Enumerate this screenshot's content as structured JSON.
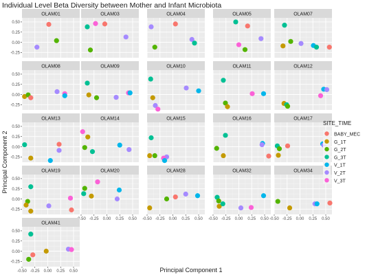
{
  "chart_data": {
    "type": "scatter",
    "title": "Individual Level Beta Diversity between Mother and Infant Microbiota",
    "xlabel": "Principal Component 1",
    "ylabel": "Principal Component 2",
    "xlim": [
      -0.5,
      0.62
    ],
    "ylim": [
      -0.38,
      0.6
    ],
    "x_ticks": [
      -0.5,
      -0.25,
      0.0,
      0.25,
      0.5
    ],
    "x_tick_labels": [
      "-0.50",
      "-0.25",
      "0.00",
      "0.25",
      "0.50"
    ],
    "y_ticks": [
      -0.25,
      0.0,
      0.25,
      0.5
    ],
    "y_tick_labels": [
      "-0.25",
      "0.00",
      "0.25",
      "0.50"
    ],
    "grid": true,
    "background": "#ebebeb",
    "strip_background": "#d9d9d9",
    "legend": {
      "title": "SITE_TIME",
      "position": "right",
      "entries": [
        {
          "label": "BABY_MEC",
          "color": "#f8766d"
        },
        {
          "label": "G_1T",
          "color": "#c49a00"
        },
        {
          "label": "G_2T",
          "color": "#53b400"
        },
        {
          "label": "G_3T",
          "color": "#00c094"
        },
        {
          "label": "V_1T",
          "color": "#00b6eb"
        },
        {
          "label": "V_2T",
          "color": "#a58aff"
        },
        {
          "label": "V_3T",
          "color": "#fb61d7"
        }
      ]
    },
    "panels": [
      {
        "label": "OLAM01",
        "points": [
          {
            "x": 0.02,
            "y": 0.44,
            "g": "BABY_MEC"
          },
          {
            "x": 0.17,
            "y": 0.04,
            "g": "G_2T"
          },
          {
            "x": -0.21,
            "y": -0.12,
            "g": "V_2T"
          }
        ]
      },
      {
        "label": "OLAM03",
        "points": [
          {
            "x": -0.04,
            "y": 0.45,
            "g": "BABY_MEC"
          },
          {
            "x": -0.22,
            "y": 0.46,
            "g": "V_3T"
          },
          {
            "x": -0.38,
            "y": 0.38,
            "g": "G_3T"
          },
          {
            "x": -0.32,
            "y": -0.19,
            "g": "G_2T"
          },
          {
            "x": 0.37,
            "y": 0.13,
            "g": "V_2T"
          }
        ]
      },
      {
        "label": "OLAM04",
        "points": [
          {
            "x": -0.42,
            "y": 0.38,
            "g": "V_2T"
          },
          {
            "x": 0.05,
            "y": 0.45,
            "g": "BABY_MEC"
          },
          {
            "x": 0.37,
            "y": 0.07,
            "g": "V_2T"
          },
          {
            "x": 0.42,
            "y": -0.02,
            "g": "G_3T"
          },
          {
            "x": -0.35,
            "y": -0.12,
            "g": "G_2T"
          }
        ]
      },
      {
        "label": "OLAM05",
        "points": [
          {
            "x": -0.06,
            "y": 0.5,
            "g": "G_3T"
          },
          {
            "x": 0.17,
            "y": 0.4,
            "g": "BABY_MEC"
          },
          {
            "x": 0.43,
            "y": 0.09,
            "g": "V_2T"
          },
          {
            "x": 0.0,
            "y": -0.06,
            "g": "V_3T"
          },
          {
            "x": 0.12,
            "y": -0.18,
            "g": "G_2T"
          }
        ]
      },
      {
        "label": "OLAM07",
        "points": [
          {
            "x": -0.3,
            "y": 0.42,
            "g": "G_3T"
          },
          {
            "x": -0.18,
            "y": 0.02,
            "g": "G_2T"
          },
          {
            "x": -0.33,
            "y": -0.09,
            "g": "G_1T"
          },
          {
            "x": 0.02,
            "y": -0.03,
            "g": "V_2T"
          },
          {
            "x": 0.26,
            "y": -0.08,
            "g": "V_1T"
          },
          {
            "x": 0.32,
            "y": -0.12,
            "g": "G_3T"
          },
          {
            "x": 0.57,
            "y": -0.12,
            "g": "BABY_MEC"
          }
        ]
      },
      {
        "label": "OLAM08",
        "points": [
          {
            "x": -0.45,
            "y": -0.05,
            "g": "G_1T"
          },
          {
            "x": -0.38,
            "y": -0.01,
            "g": "G_2T"
          },
          {
            "x": -0.33,
            "y": -0.08,
            "g": "BABY_MEC"
          },
          {
            "x": 0.18,
            "y": 0.07,
            "g": "V_2T"
          },
          {
            "x": 0.33,
            "y": 0.02,
            "g": "V_3T"
          },
          {
            "x": 0.33,
            "y": -0.03,
            "g": "V_1T"
          }
        ]
      },
      {
        "label": "OLAM09",
        "points": [
          {
            "x": -0.38,
            "y": 0.28,
            "g": "G_3T"
          },
          {
            "x": -0.35,
            "y": -0.01,
            "g": "G_1T"
          },
          {
            "x": -0.2,
            "y": -0.08,
            "g": "G_2T"
          },
          {
            "x": 0.18,
            "y": -0.07,
            "g": "V_2T"
          },
          {
            "x": 0.42,
            "y": 0.04,
            "g": "V_3T"
          },
          {
            "x": 0.45,
            "y": 0.04,
            "g": "V_1T"
          }
        ]
      },
      {
        "label": "OLAM10",
        "points": [
          {
            "x": -0.43,
            "y": 0.38,
            "g": "G_3T"
          },
          {
            "x": -0.39,
            "y": -0.08,
            "g": "G_1T"
          },
          {
            "x": -0.34,
            "y": -0.27,
            "g": "V_2T"
          },
          {
            "x": -0.29,
            "y": -0.36,
            "g": "V_3T"
          },
          {
            "x": 0.26,
            "y": 0.16,
            "g": "V_2T"
          },
          {
            "x": 0.5,
            "y": 0.09,
            "g": "V_1T"
          }
        ]
      },
      {
        "label": "OLAM11",
        "points": [
          {
            "x": -0.3,
            "y": 0.35,
            "g": "G_3T"
          },
          {
            "x": -0.26,
            "y": -0.21,
            "g": "G_2T"
          },
          {
            "x": -0.22,
            "y": -0.3,
            "g": "G_1T"
          },
          {
            "x": 0.26,
            "y": 0.02,
            "g": "V_3T"
          },
          {
            "x": 0.48,
            "y": 0.02,
            "g": "V_1T"
          }
        ]
      },
      {
        "label": "OLAM12",
        "points": [
          {
            "x": -0.31,
            "y": -0.22,
            "g": "G_1T"
          },
          {
            "x": -0.26,
            "y": -0.25,
            "g": "G_3T"
          },
          {
            "x": -0.24,
            "y": -0.29,
            "g": "G_2T"
          },
          {
            "x": 0.4,
            "y": -0.03,
            "g": "V_3T"
          },
          {
            "x": 0.46,
            "y": 0.13,
            "g": "V_1T"
          },
          {
            "x": 0.52,
            "y": 0.12,
            "g": "V_2T"
          }
        ]
      },
      {
        "label": "OLAM13",
        "points": [
          {
            "x": -0.45,
            "y": 0.05,
            "g": "G_3T"
          },
          {
            "x": -0.33,
            "y": -0.28,
            "g": "G_1T"
          },
          {
            "x": 0.22,
            "y": 0.06,
            "g": "BABY_MEC"
          },
          {
            "x": 0.22,
            "y": -0.09,
            "g": "V_2T"
          },
          {
            "x": 0.05,
            "y": -0.34,
            "g": "V_1T"
          }
        ]
      },
      {
        "label": "OLAM14",
        "points": [
          {
            "x": -0.47,
            "y": 0.37,
            "g": "V_3T"
          },
          {
            "x": -0.37,
            "y": 0.24,
            "g": "G_1T"
          },
          {
            "x": -0.43,
            "y": -0.02,
            "g": "G_2T"
          },
          {
            "x": -0.28,
            "y": -0.12,
            "g": "G_3T"
          },
          {
            "x": 0.25,
            "y": 0.04,
            "g": "V_1T"
          },
          {
            "x": 0.43,
            "y": -0.07,
            "g": "V_2T"
          }
        ]
      },
      {
        "label": "OLAM15",
        "points": [
          {
            "x": -0.42,
            "y": 0.22,
            "g": "G_3T"
          },
          {
            "x": -0.45,
            "y": -0.22,
            "g": "G_1T"
          },
          {
            "x": -0.35,
            "y": -0.22,
            "g": "G_2T"
          },
          {
            "x": -0.12,
            "y": -0.25,
            "g": "V_2T"
          },
          {
            "x": -0.18,
            "y": -0.28,
            "g": "V_3T"
          },
          {
            "x": -0.16,
            "y": -0.34,
            "g": "V_1T"
          }
        ]
      },
      {
        "label": "OLAM16",
        "points": [
          {
            "x": -0.26,
            "y": 0.28,
            "g": "G_3T"
          },
          {
            "x": -0.43,
            "y": -0.04,
            "g": "G_2T"
          },
          {
            "x": -0.3,
            "y": -0.22,
            "g": "G_1T"
          },
          {
            "x": 0.46,
            "y": 0.08,
            "g": "V_1T"
          },
          {
            "x": 0.45,
            "y": 0.05,
            "g": "V_2T"
          },
          {
            "x": 0.58,
            "y": -0.23,
            "g": "BABY_MEC"
          }
        ]
      },
      {
        "label": "OLAM17",
        "points": [
          {
            "x": -0.44,
            "y": 0.02,
            "g": "G_3T"
          },
          {
            "x": -0.4,
            "y": -0.05,
            "g": "G_2T"
          },
          {
            "x": -0.24,
            "y": 0.02,
            "g": "BABY_MEC"
          },
          {
            "x": -0.42,
            "y": -0.21,
            "g": "G_1T"
          },
          {
            "x": 0.44,
            "y": 0.07,
            "g": "V_1T"
          },
          {
            "x": 0.46,
            "y": 0.04,
            "g": "V_2T"
          }
        ]
      },
      {
        "label": "OLAM19",
        "points": [
          {
            "x": -0.33,
            "y": 0.3,
            "g": "G_3T"
          },
          {
            "x": -0.39,
            "y": -0.06,
            "g": "G_2T"
          },
          {
            "x": -0.42,
            "y": -0.15,
            "g": "G_1T"
          },
          {
            "x": -0.33,
            "y": -0.3,
            "g": "G_1T"
          },
          {
            "x": 0.02,
            "y": -0.17,
            "g": "V_2T"
          },
          {
            "x": 0.44,
            "y": 0.02,
            "g": "V_3T"
          },
          {
            "x": 0.46,
            "y": -0.27,
            "g": "BABY_MEC"
          }
        ]
      },
      {
        "label": "OLAM20",
        "points": [
          {
            "x": -0.43,
            "y": 0.26,
            "g": "G_2T"
          },
          {
            "x": -0.18,
            "y": 0.42,
            "g": "V_3T"
          },
          {
            "x": -0.45,
            "y": 0.13,
            "g": "G_3T"
          },
          {
            "x": -0.3,
            "y": 0.07,
            "g": "G_1T"
          },
          {
            "x": 0.24,
            "y": 0.22,
            "g": "V_1T"
          },
          {
            "x": 0.2,
            "y": 0.0,
            "g": "V_2T"
          }
        ]
      },
      {
        "label": "OLAM28",
        "points": [
          {
            "x": -0.45,
            "y": -0.22,
            "g": "G_1T"
          },
          {
            "x": -0.12,
            "y": 0.0,
            "g": "G_2T"
          },
          {
            "x": 0.25,
            "y": 0.12,
            "g": "V_2T"
          },
          {
            "x": 0.48,
            "y": 0.08,
            "g": "V_1T"
          },
          {
            "x": 0.05,
            "y": 0.05,
            "g": "BABY_MEC"
          }
        ]
      },
      {
        "label": "OLAM32",
        "points": [
          {
            "x": -0.42,
            "y": 0.04,
            "g": "G_3T"
          },
          {
            "x": -0.39,
            "y": -0.05,
            "g": "G_2T"
          },
          {
            "x": -0.38,
            "y": -0.18,
            "g": "G_1T"
          },
          {
            "x": -0.31,
            "y": -0.12,
            "g": "G_3T"
          },
          {
            "x": 0.04,
            "y": -0.22,
            "g": "V_2T"
          },
          {
            "x": 0.24,
            "y": -0.21,
            "g": "V_3T"
          },
          {
            "x": 0.48,
            "y": 0.08,
            "g": "V_1T"
          }
        ]
      },
      {
        "label": "OLAM34",
        "points": [
          {
            "x": -0.43,
            "y": -0.06,
            "g": "G_2T"
          },
          {
            "x": -0.2,
            "y": -0.22,
            "g": "G_1T"
          },
          {
            "x": 0.29,
            "y": -0.12,
            "g": "V_2T"
          },
          {
            "x": 0.33,
            "y": -0.12,
            "g": "V_1T"
          },
          {
            "x": 0.58,
            "y": -0.1,
            "g": "BABY_MEC"
          }
        ]
      },
      {
        "label": "OLAM41",
        "points": [
          {
            "x": -0.33,
            "y": 0.42,
            "g": "G_3T"
          },
          {
            "x": -0.29,
            "y": -0.09,
            "g": "BABY_MEC"
          },
          {
            "x": -0.37,
            "y": -0.2,
            "g": "G_2T"
          },
          {
            "x": -0.03,
            "y": 0.0,
            "g": "G_1T"
          },
          {
            "x": 0.4,
            "y": 0.05,
            "g": "V_2T"
          },
          {
            "x": 0.46,
            "y": 0.04,
            "g": "V_3T"
          }
        ]
      }
    ]
  }
}
